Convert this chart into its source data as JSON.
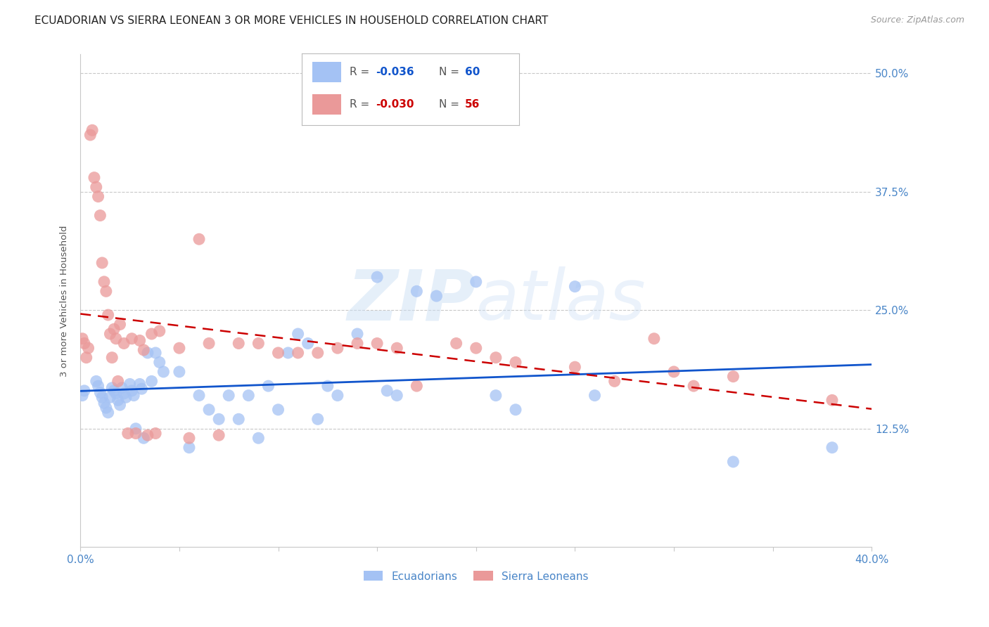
{
  "title": "ECUADORIAN VS SIERRA LEONEAN 3 OR MORE VEHICLES IN HOUSEHOLD CORRELATION CHART",
  "source": "Source: ZipAtlas.com",
  "ylabel": "3 or more Vehicles in Household",
  "watermark": "ZIPatlas",
  "xlim": [
    0.0,
    0.4
  ],
  "ylim": [
    0.0,
    0.52
  ],
  "xtick_positions": [
    0.0,
    0.05,
    0.1,
    0.15,
    0.2,
    0.25,
    0.3,
    0.35,
    0.4
  ],
  "xtick_labels": [
    "0.0%",
    "",
    "",
    "",
    "",
    "",
    "",
    "",
    "40.0%"
  ],
  "ytick_positions": [
    0.125,
    0.25,
    0.375,
    0.5
  ],
  "ytick_labels_right": [
    "12.5%",
    "25.0%",
    "37.5%",
    "50.0%"
  ],
  "blue_color": "#a4c2f4",
  "pink_color": "#ea9999",
  "blue_line_color": "#1155cc",
  "pink_line_color": "#cc0000",
  "tick_label_color": "#4a86c8",
  "legend_r_blue": "R = -0.036",
  "legend_n_blue": "N = 60",
  "legend_r_pink": "R = -0.030",
  "legend_n_pink": "N = 56",
  "blue_x": [
    0.001,
    0.002,
    0.008,
    0.009,
    0.01,
    0.011,
    0.012,
    0.013,
    0.014,
    0.015,
    0.016,
    0.017,
    0.018,
    0.019,
    0.02,
    0.021,
    0.022,
    0.023,
    0.025,
    0.026,
    0.027,
    0.028,
    0.03,
    0.031,
    0.032,
    0.034,
    0.036,
    0.038,
    0.04,
    0.042,
    0.05,
    0.055,
    0.06,
    0.065,
    0.07,
    0.075,
    0.08,
    0.085,
    0.09,
    0.095,
    0.1,
    0.105,
    0.11,
    0.115,
    0.12,
    0.125,
    0.13,
    0.14,
    0.15,
    0.155,
    0.16,
    0.17,
    0.18,
    0.2,
    0.21,
    0.22,
    0.25,
    0.26,
    0.33,
    0.38
  ],
  "blue_y": [
    0.16,
    0.165,
    0.175,
    0.17,
    0.163,
    0.158,
    0.152,
    0.147,
    0.142,
    0.158,
    0.168,
    0.165,
    0.162,
    0.155,
    0.15,
    0.168,
    0.162,
    0.158,
    0.172,
    0.165,
    0.16,
    0.125,
    0.172,
    0.167,
    0.115,
    0.205,
    0.175,
    0.205,
    0.195,
    0.185,
    0.185,
    0.105,
    0.16,
    0.145,
    0.135,
    0.16,
    0.135,
    0.16,
    0.115,
    0.17,
    0.145,
    0.205,
    0.225,
    0.215,
    0.135,
    0.17,
    0.16,
    0.225,
    0.285,
    0.165,
    0.16,
    0.27,
    0.265,
    0.28,
    0.16,
    0.145,
    0.275,
    0.16,
    0.09,
    0.105
  ],
  "pink_x": [
    0.001,
    0.002,
    0.003,
    0.004,
    0.005,
    0.006,
    0.007,
    0.008,
    0.009,
    0.01,
    0.011,
    0.012,
    0.013,
    0.014,
    0.015,
    0.016,
    0.017,
    0.018,
    0.019,
    0.02,
    0.022,
    0.024,
    0.026,
    0.028,
    0.03,
    0.032,
    0.034,
    0.036,
    0.038,
    0.04,
    0.05,
    0.055,
    0.06,
    0.065,
    0.07,
    0.08,
    0.09,
    0.1,
    0.11,
    0.12,
    0.13,
    0.14,
    0.15,
    0.16,
    0.17,
    0.19,
    0.2,
    0.21,
    0.22,
    0.25,
    0.27,
    0.29,
    0.3,
    0.31,
    0.33,
    0.38
  ],
  "pink_y": [
    0.22,
    0.215,
    0.2,
    0.21,
    0.435,
    0.44,
    0.39,
    0.38,
    0.37,
    0.35,
    0.3,
    0.28,
    0.27,
    0.245,
    0.225,
    0.2,
    0.23,
    0.22,
    0.175,
    0.235,
    0.215,
    0.12,
    0.22,
    0.12,
    0.218,
    0.208,
    0.118,
    0.225,
    0.12,
    0.228,
    0.21,
    0.115,
    0.325,
    0.215,
    0.118,
    0.215,
    0.215,
    0.205,
    0.205,
    0.205,
    0.21,
    0.215,
    0.215,
    0.21,
    0.17,
    0.215,
    0.21,
    0.2,
    0.195,
    0.19,
    0.175,
    0.22,
    0.185,
    0.17,
    0.18,
    0.155
  ],
  "grid_color": "#c8c8c8",
  "background_color": "#ffffff",
  "title_fontsize": 11,
  "axis_label_fontsize": 9.5
}
